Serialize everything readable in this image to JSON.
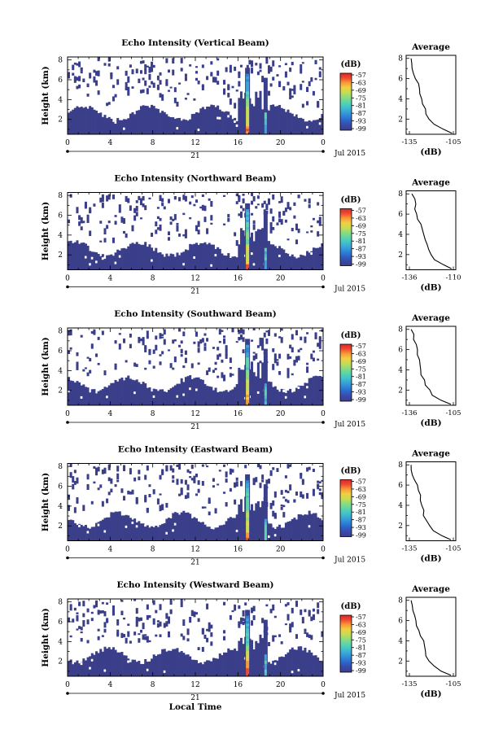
{
  "colors": {
    "background_dark": "#3b3f8a",
    "colormap": [
      "#3b3f8a",
      "#3a49a8",
      "#2d63c8",
      "#2f86d8",
      "#3aa6d8",
      "#43c6c8",
      "#5fd6a6",
      "#8fdc7c",
      "#c8dc52",
      "#f0d040",
      "#f89a38",
      "#f04a30",
      "#d8282a"
    ]
  },
  "chart_data": [
    {
      "type": "heatmap",
      "title": "Echo Intensity (Vertical Beam)",
      "ylabel": "Height (km)",
      "x_ticks": [
        "0",
        "4",
        "8",
        "12",
        "16",
        "20",
        "0"
      ],
      "y_ticks": [
        "2",
        "4",
        "6",
        "8"
      ],
      "date_center": "21",
      "date_label": "Jul 2015",
      "xlim": [
        0,
        24
      ],
      "ylim": [
        0.5,
        8.3
      ],
      "colorbar_unit": "(dB)",
      "colorbar_ticks": [
        "-57",
        "-63",
        "-69",
        "-75",
        "-81",
        "-87",
        "-93",
        "-99"
      ],
      "avg_title": "Average",
      "avg_xlabel": "(dB)",
      "avg_x_ticks": [
        "-135",
        "-105"
      ],
      "avg_xlim": [
        -140,
        -100
      ],
      "avg_y_ticks": [
        "2",
        "4",
        "6",
        "8"
      ],
      "avg_profile": {
        "height": [
          0.6,
          1.0,
          1.5,
          2.0,
          2.5,
          3.0,
          3.5,
          4.0,
          4.5,
          5.0,
          5.5,
          6.0,
          6.5,
          7.0,
          7.5,
          8.0
        ],
        "value": [
          -103,
          -110,
          -118,
          -121,
          -123,
          -125,
          -126,
          -127,
          -128,
          -130,
          -131,
          -132,
          -133,
          -134,
          -135,
          -136
        ]
      }
    },
    {
      "type": "heatmap",
      "title": "Echo Intensity (Northward Beam)",
      "ylabel": "Height (km)",
      "x_ticks": [
        "0",
        "4",
        "8",
        "12",
        "16",
        "20",
        "0"
      ],
      "y_ticks": [
        "2",
        "4",
        "6",
        "8"
      ],
      "date_center": "21",
      "date_label": "Jul 2015",
      "xlim": [
        0,
        24
      ],
      "ylim": [
        0.5,
        8.3
      ],
      "colorbar_unit": "(dB)",
      "colorbar_ticks": [
        "-57",
        "-63",
        "-69",
        "-75",
        "-81",
        "-87",
        "-93",
        "-99"
      ],
      "avg_title": "Average",
      "avg_xlabel": "(dB)",
      "avg_x_ticks": [
        "-136",
        "-110"
      ],
      "avg_xlim": [
        -140,
        -105
      ],
      "avg_y_ticks": [
        "2",
        "4",
        "6",
        "8"
      ],
      "avg_profile": {
        "height": [
          0.6,
          1.0,
          1.5,
          2.0,
          2.5,
          3.0,
          3.5,
          4.0,
          4.5,
          5.0,
          5.5,
          6.0,
          6.5,
          7.0,
          7.5,
          8.0
        ],
        "value": [
          -108,
          -114,
          -120,
          -122,
          -124,
          -126,
          -127,
          -128,
          -129,
          -130,
          -131,
          -132,
          -133,
          -134,
          -135,
          -136
        ]
      }
    },
    {
      "type": "heatmap",
      "title": "Echo Intensity (Southward Beam)",
      "ylabel": "Height (km)",
      "x_ticks": [
        "0",
        "4",
        "8",
        "12",
        "16",
        "20",
        "0"
      ],
      "y_ticks": [
        "2",
        "4",
        "6",
        "8"
      ],
      "date_center": "21",
      "date_label": "Jul 2015",
      "xlim": [
        0,
        24
      ],
      "ylim": [
        0.5,
        8.3
      ],
      "colorbar_unit": "(dB)",
      "colorbar_ticks": [
        "-57",
        "-63",
        "-69",
        "-75",
        "-81",
        "-87",
        "-93",
        "-99"
      ],
      "avg_title": "Average",
      "avg_xlabel": "(dB)",
      "avg_x_ticks": [
        "-136",
        "-105"
      ],
      "avg_xlim": [
        -140,
        -100
      ],
      "avg_y_ticks": [
        "2",
        "4",
        "6",
        "8"
      ],
      "avg_profile": {
        "height": [
          0.6,
          1.0,
          1.5,
          2.0,
          2.5,
          3.0,
          3.5,
          4.0,
          4.5,
          5.0,
          5.5,
          6.0,
          6.5,
          7.0,
          7.5,
          8.0
        ],
        "value": [
          -104,
          -112,
          -119,
          -122,
          -124,
          -126,
          -127,
          -128,
          -129,
          -130,
          -131,
          -132,
          -133,
          -134,
          -135,
          -136
        ]
      }
    },
    {
      "type": "heatmap",
      "title": "Echo Intensity (Eastward Beam)",
      "ylabel": "Height (km)",
      "x_ticks": [
        "0",
        "4",
        "8",
        "12",
        "16",
        "20",
        "0"
      ],
      "y_ticks": [
        "2",
        "4",
        "6",
        "8"
      ],
      "date_center": "21",
      "date_label": "Jul 2015",
      "xlim": [
        0,
        24
      ],
      "ylim": [
        0.5,
        8.3
      ],
      "colorbar_unit": "(dB)",
      "colorbar_ticks": [
        "-57",
        "-63",
        "-69",
        "-75",
        "-81",
        "-87",
        "-93",
        "-99"
      ],
      "avg_title": "Average",
      "avg_xlabel": "(dB)",
      "avg_x_ticks": [
        "-135",
        "-105"
      ],
      "avg_xlim": [
        -140,
        -100
      ],
      "avg_y_ticks": [
        "2",
        "4",
        "6",
        "8"
      ],
      "avg_profile": {
        "height": [
          0.6,
          1.0,
          1.5,
          2.0,
          2.5,
          3.0,
          3.5,
          4.0,
          4.5,
          5.0,
          5.5,
          6.0,
          6.5,
          7.0,
          7.5,
          8.0
        ],
        "value": [
          -104,
          -111,
          -118,
          -121,
          -123,
          -125,
          -126,
          -127,
          -128,
          -129,
          -131,
          -132,
          -133,
          -134,
          -135,
          -136
        ]
      }
    },
    {
      "type": "heatmap",
      "title": "Echo Intensity (Westward Beam)",
      "ylabel": "Height (km)",
      "x_ticks": [
        "0",
        "4",
        "8",
        "12",
        "16",
        "20",
        "0"
      ],
      "y_ticks": [
        "2",
        "4",
        "6",
        "8"
      ],
      "date_center": "21",
      "date_label": "Jul 2015",
      "xlabel": "Local Time",
      "xlim": [
        0,
        24
      ],
      "ylim": [
        0.5,
        8.3
      ],
      "colorbar_unit": "(dB)",
      "colorbar_ticks": [
        "-57",
        "-63",
        "-69",
        "-75",
        "-81",
        "-87",
        "-93",
        "-99"
      ],
      "avg_title": "Average",
      "avg_xlabel": "(dB)",
      "avg_x_ticks": [
        "-135",
        "-105"
      ],
      "avg_xlim": [
        -140,
        -100
      ],
      "avg_y_ticks": [
        "2",
        "4",
        "6",
        "8"
      ],
      "avg_profile": {
        "height": [
          0.6,
          1.0,
          1.5,
          2.0,
          2.5,
          3.0,
          3.5,
          4.0,
          4.5,
          5.0,
          5.5,
          6.0,
          6.5,
          7.0,
          7.5,
          8.0
        ],
        "value": [
          -104,
          -111,
          -118,
          -121,
          -123,
          -125,
          -126,
          -127,
          -128,
          -129,
          -131,
          -132,
          -133,
          -134,
          -135,
          -136
        ]
      }
    }
  ]
}
